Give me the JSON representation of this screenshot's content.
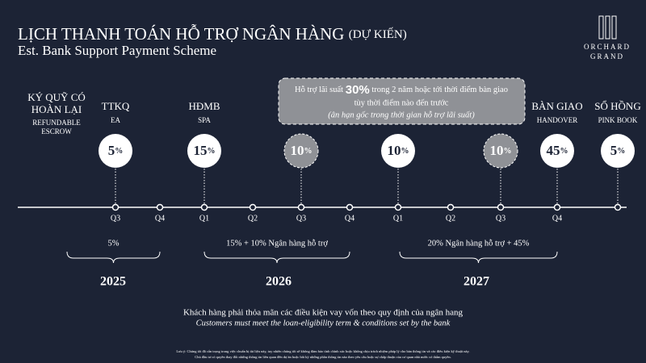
{
  "header": {
    "title": "LỊCH THANH TOÁN HỖ TRỢ NGÂN HÀNG",
    "title_suffix": "(DỰ KIẾN)",
    "subtitle": "Est. Bank Support Payment Scheme"
  },
  "brand": {
    "line1": "ORCHARD",
    "line2": "GRAND"
  },
  "callout": {
    "line1_pre": "Hỗ trợ lãi suất",
    "line1_highlight": "30%",
    "line1_post": "trong 2 năm hoặc tới thời điểm bàn giao",
    "line2": "tùy thời điểm nào đến trước",
    "line3": "(ân hạn gốc trong thời gian hỗ trợ lãi suất)"
  },
  "milestones": [
    {
      "title_lines": [
        "KÝ QUỸ CÓ",
        "HOÀN LẠI"
      ],
      "subtitle_lines": [
        "REFUNDABLE",
        "ESCROW"
      ]
    },
    {
      "title_lines": [
        "TTKQ"
      ],
      "subtitle_lines": [
        "EA"
      ],
      "amount": "5",
      "unit": "%"
    },
    {
      "title_lines": [
        "HĐMB"
      ],
      "subtitle_lines": [
        "SPA"
      ],
      "amount": "15",
      "unit": "%"
    },
    {
      "amount": "10",
      "unit": "%"
    },
    {
      "amount": "10",
      "unit": "%"
    },
    {
      "amount": "10",
      "unit": "%"
    },
    {
      "title_lines": [
        "BÀN GIAO"
      ],
      "subtitle_lines": [
        "HANDOVER"
      ],
      "amount": "45",
      "unit": "%"
    },
    {
      "title_lines": [
        "SỔ HỒNG"
      ],
      "subtitle_lines": [
        "PINK BOOK"
      ],
      "amount": "5",
      "unit": "%"
    }
  ],
  "quarters": [
    "Q3",
    "Q4",
    "Q1",
    "Q2",
    "Q3",
    "Q4",
    "Q1",
    "Q2",
    "Q3",
    "Q4"
  ],
  "years": [
    {
      "label": "2025",
      "payment": "5%"
    },
    {
      "label": "2026",
      "payment": "15% + 10% Ngân hàng hỗ trợ"
    },
    {
      "label": "2027",
      "payment": "20% Ngân hàng hỗ trợ + 45%"
    }
  ],
  "footer": {
    "note_vi": "Khách hàng phải thỏa mãn các điều kiện vay vốn theo quy định của ngân hang",
    "note_en": "Customers must meet the loan-eligibility term & conditions set by the bank",
    "disclaimer_lines": [
      "Lưu ý: Chúng tôi đã cẩn trọng trong việc chuẩn bị tài liệu này, tuy nhiên chúng tôi sẽ không đảm bảo tính chính xác hoặc không chịu trách nhiệm pháp lý cho bản thông tin và các điều kiện kỹ thuật này.",
      "Chủ đầu tư có quyền thay đổi những thông tin liên quan đến dự án hoặc bất kỳ những phần thông tin nào theo yêu cầu hoặc sự chấp thuận của cơ quan nhà nước có thẩm quyền."
    ]
  }
}
